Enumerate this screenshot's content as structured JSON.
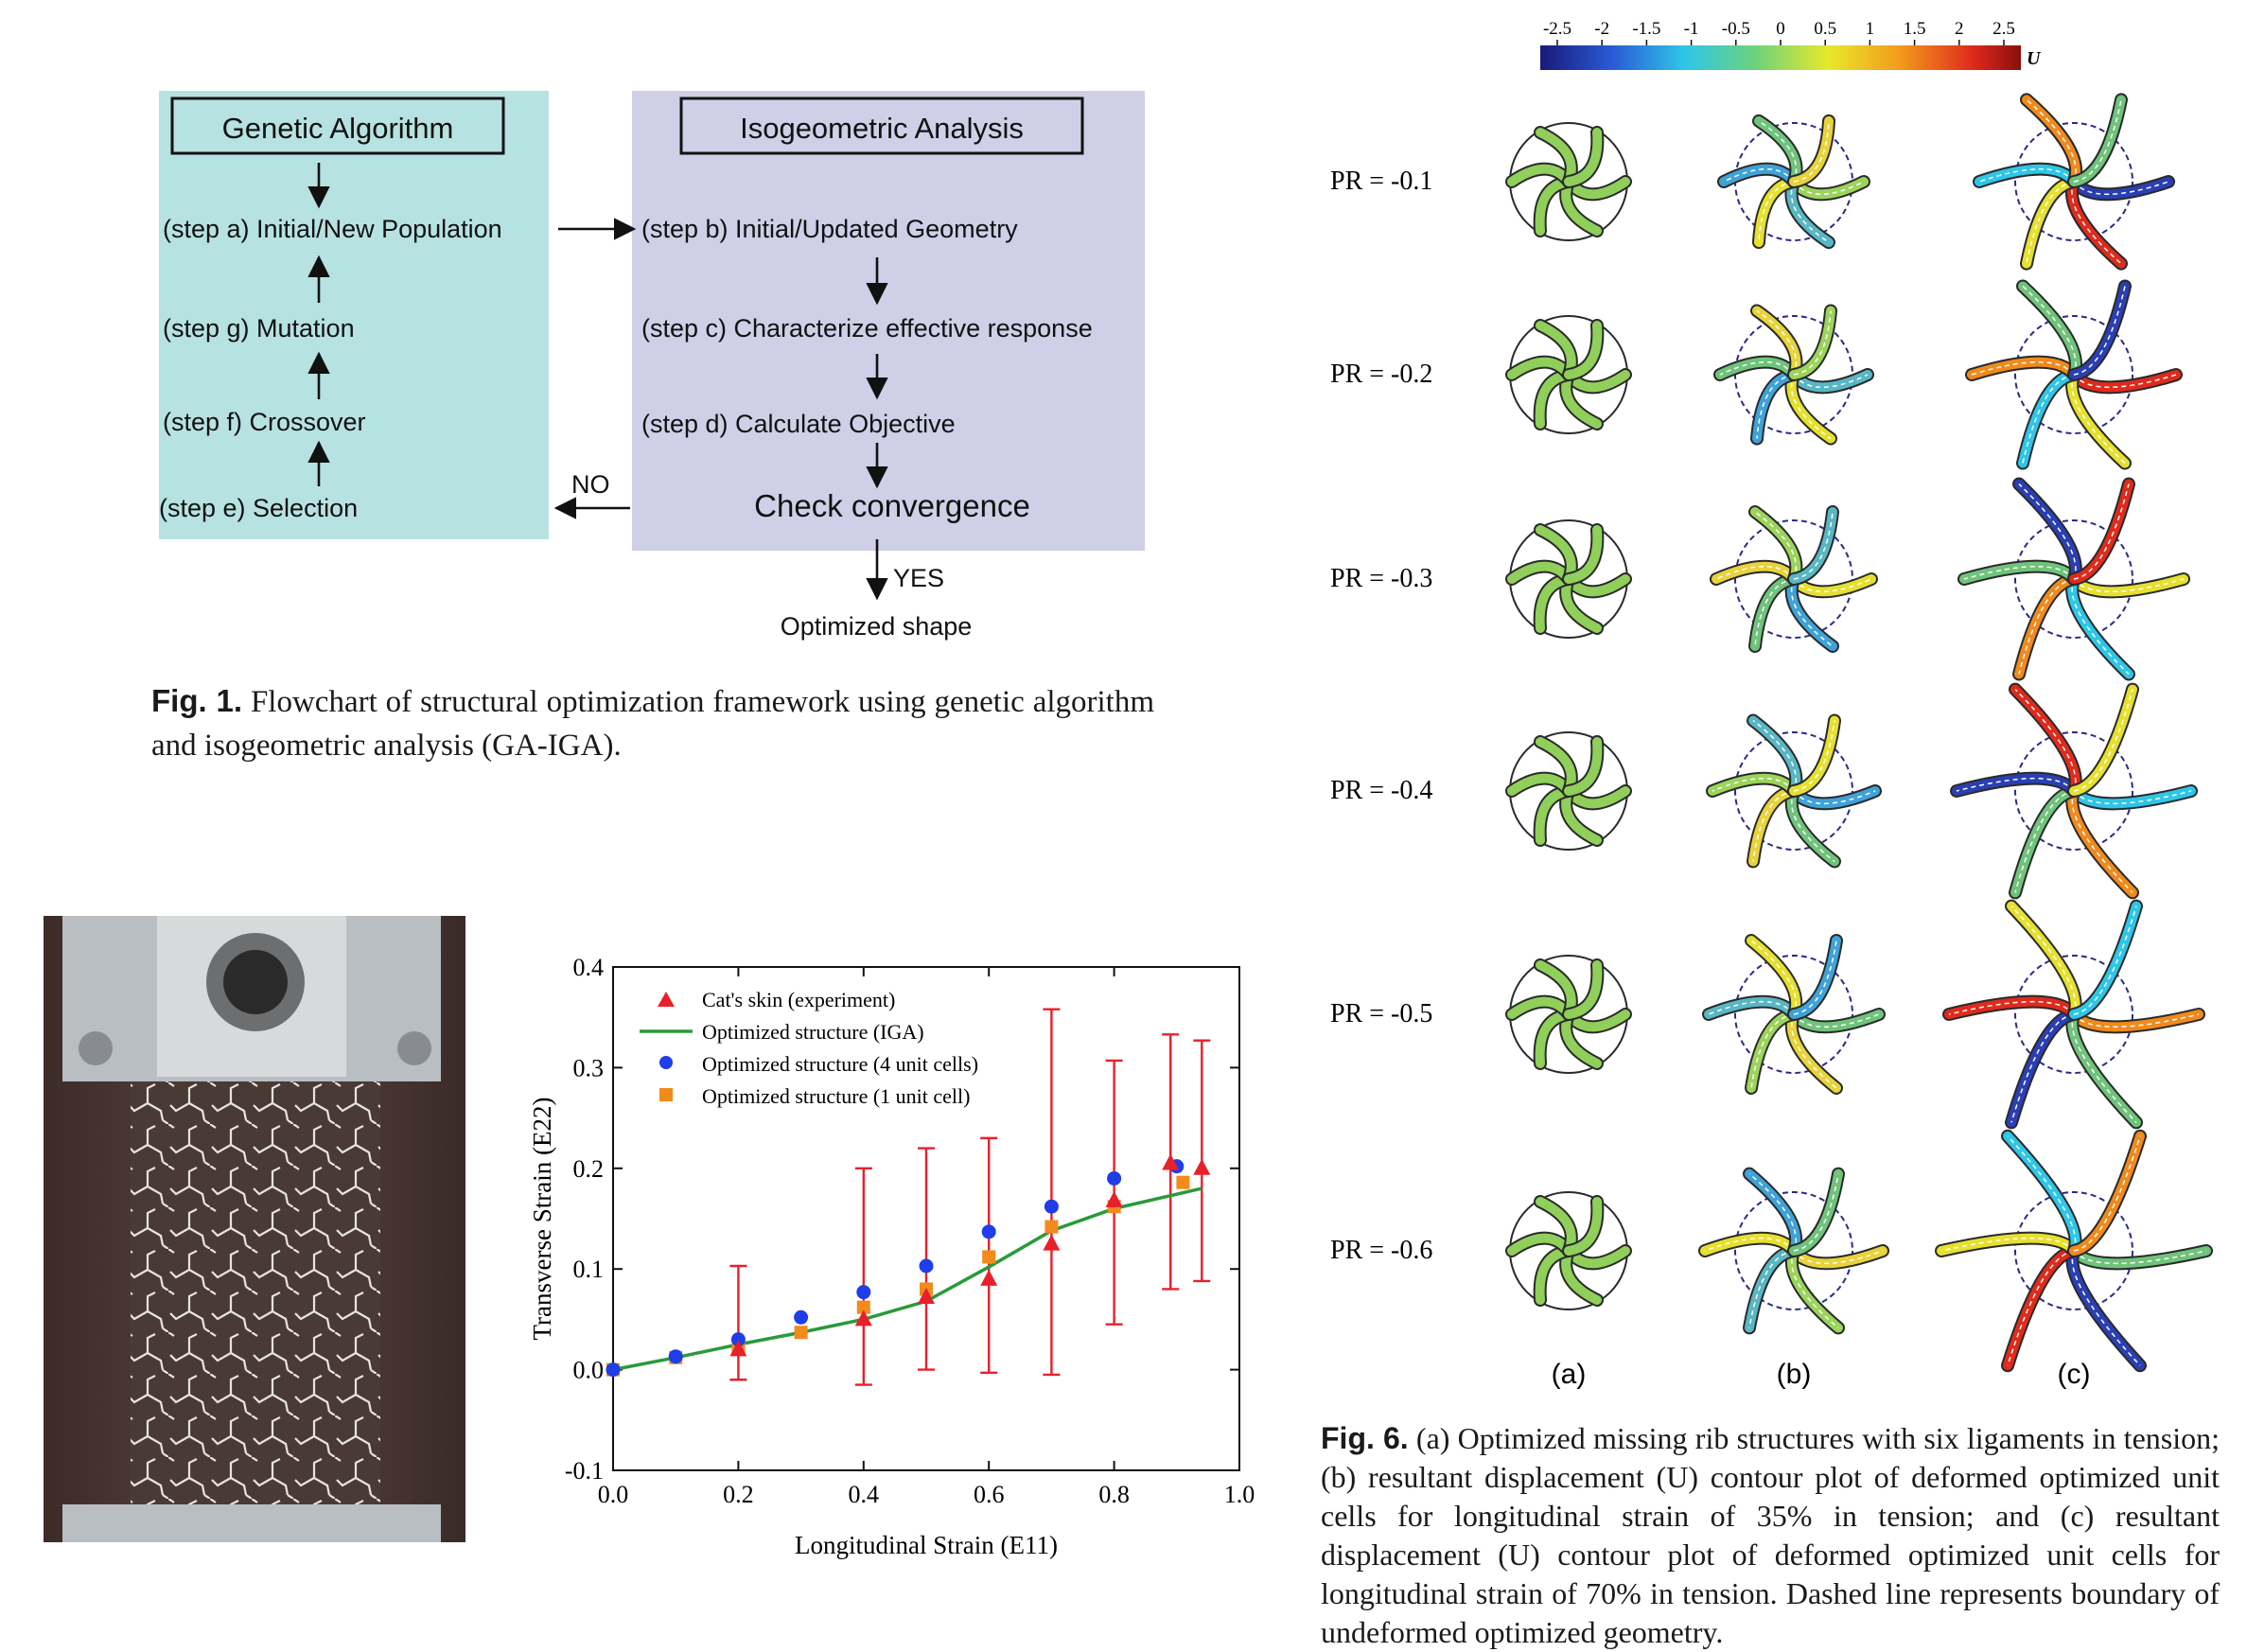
{
  "fig1": {
    "ga_title": "Genetic Algorithm",
    "iga_title": "Isogeometric Analysis",
    "step_a": "(step a) Initial/New Population",
    "step_g": "(step g) Mutation",
    "step_f": "(step f) Crossover",
    "step_e": "(step e) Selection",
    "step_b": "(step b) Initial/Updated Geometry",
    "step_c": "(step c) Characterize effective response",
    "step_d": "(step d) Calculate Objective",
    "check": "Check convergence",
    "no": "NO",
    "yes": "YES",
    "optimized": "Optimized shape",
    "caption_label": "Fig. 1.",
    "caption_text": " Flowchart of structural optimization framework using genetic algorithm and isogeometric analysis (GA-IGA).",
    "colors": {
      "ga_box": "#b7e2e2",
      "iga_box": "#cfcfe8"
    }
  },
  "chart_data": {
    "type": "scatter",
    "xlabel": "Longitudinal Strain (E11)",
    "ylabel": "Transverse Strain (E22)",
    "xlim": [
      0,
      1.0
    ],
    "ylim": [
      -0.1,
      0.4
    ],
    "xticks": [
      "0.0",
      "0.2",
      "0.4",
      "0.6",
      "0.8",
      "1.0"
    ],
    "yticks": [
      "-0.1",
      "0.0",
      "0.1",
      "0.2",
      "0.3",
      "0.4"
    ],
    "legend_position": "top-left",
    "series": [
      {
        "name": "Cat's skin (experiment)",
        "marker": "triangle",
        "color": "#e8202a",
        "points": [
          {
            "x": 0.2,
            "y": 0.02,
            "lo": -0.01,
            "hi": 0.103
          },
          {
            "x": 0.4,
            "y": 0.05,
            "lo": -0.015,
            "hi": 0.2
          },
          {
            "x": 0.5,
            "y": 0.072,
            "lo": 0.0,
            "hi": 0.22
          },
          {
            "x": 0.6,
            "y": 0.09,
            "lo": -0.003,
            "hi": 0.23
          },
          {
            "x": 0.7,
            "y": 0.125,
            "lo": -0.005,
            "hi": 0.358
          },
          {
            "x": 0.8,
            "y": 0.168,
            "lo": 0.045,
            "hi": 0.307
          },
          {
            "x": 0.89,
            "y": 0.205,
            "lo": 0.08,
            "hi": 0.333
          },
          {
            "x": 0.94,
            "y": 0.2,
            "lo": 0.088,
            "hi": 0.327
          }
        ]
      },
      {
        "name": "Optimized structure (IGA)",
        "marker": "line",
        "color": "#2a9a3a",
        "points": [
          {
            "x": 0.0,
            "y": 0.0
          },
          {
            "x": 0.1,
            "y": 0.012
          },
          {
            "x": 0.2,
            "y": 0.025
          },
          {
            "x": 0.3,
            "y": 0.037
          },
          {
            "x": 0.4,
            "y": 0.05
          },
          {
            "x": 0.5,
            "y": 0.068
          },
          {
            "x": 0.6,
            "y": 0.102
          },
          {
            "x": 0.7,
            "y": 0.138
          },
          {
            "x": 0.8,
            "y": 0.16
          },
          {
            "x": 0.94,
            "y": 0.18
          }
        ]
      },
      {
        "name": "Optimized structure (4 unit cells)",
        "marker": "circle",
        "color": "#1f3de8",
        "points": [
          {
            "x": 0.0,
            "y": 0.0
          },
          {
            "x": 0.1,
            "y": 0.013
          },
          {
            "x": 0.2,
            "y": 0.03
          },
          {
            "x": 0.3,
            "y": 0.052
          },
          {
            "x": 0.4,
            "y": 0.077
          },
          {
            "x": 0.5,
            "y": 0.103
          },
          {
            "x": 0.6,
            "y": 0.137
          },
          {
            "x": 0.7,
            "y": 0.162
          },
          {
            "x": 0.8,
            "y": 0.19
          },
          {
            "x": 0.9,
            "y": 0.202
          }
        ]
      },
      {
        "name": "Optimized structure (1 unit cell)",
        "marker": "square",
        "color": "#f28a1c",
        "points": [
          {
            "x": 0.0,
            "y": 0.0
          },
          {
            "x": 0.1,
            "y": 0.012
          },
          {
            "x": 0.2,
            "y": 0.022
          },
          {
            "x": 0.3,
            "y": 0.037
          },
          {
            "x": 0.4,
            "y": 0.062
          },
          {
            "x": 0.5,
            "y": 0.08
          },
          {
            "x": 0.6,
            "y": 0.112
          },
          {
            "x": 0.7,
            "y": 0.142
          },
          {
            "x": 0.8,
            "y": 0.162
          },
          {
            "x": 0.91,
            "y": 0.186
          }
        ]
      }
    ]
  },
  "fig6": {
    "colorbar_ticks": [
      "-2.5",
      "-2",
      "-1.5",
      "-1",
      "-0.5",
      "0",
      "0.5",
      "1",
      "1.5",
      "2",
      "2.5"
    ],
    "colorbar_label": "U",
    "rows": [
      "PR = -0.1",
      "PR = -0.2",
      "PR = -0.3",
      "PR = -0.4",
      "PR = -0.5",
      "PR = -0.6"
    ],
    "columns": [
      "(a)",
      "(b)",
      "(c)"
    ],
    "caption_label": "Fig. 6.",
    "caption_text": " (a) Optimized missing rib structures with six ligaments in tension; (b) resultant displacement (U) contour plot of deformed optimized unit cells for longitudinal strain of 35% in tension; and (c) resultant displacement (U) contour plot of deformed optimized unit cells for longitudinal strain of 70% in tension. Dashed line represents boundary of undeformed optimized geometry."
  }
}
